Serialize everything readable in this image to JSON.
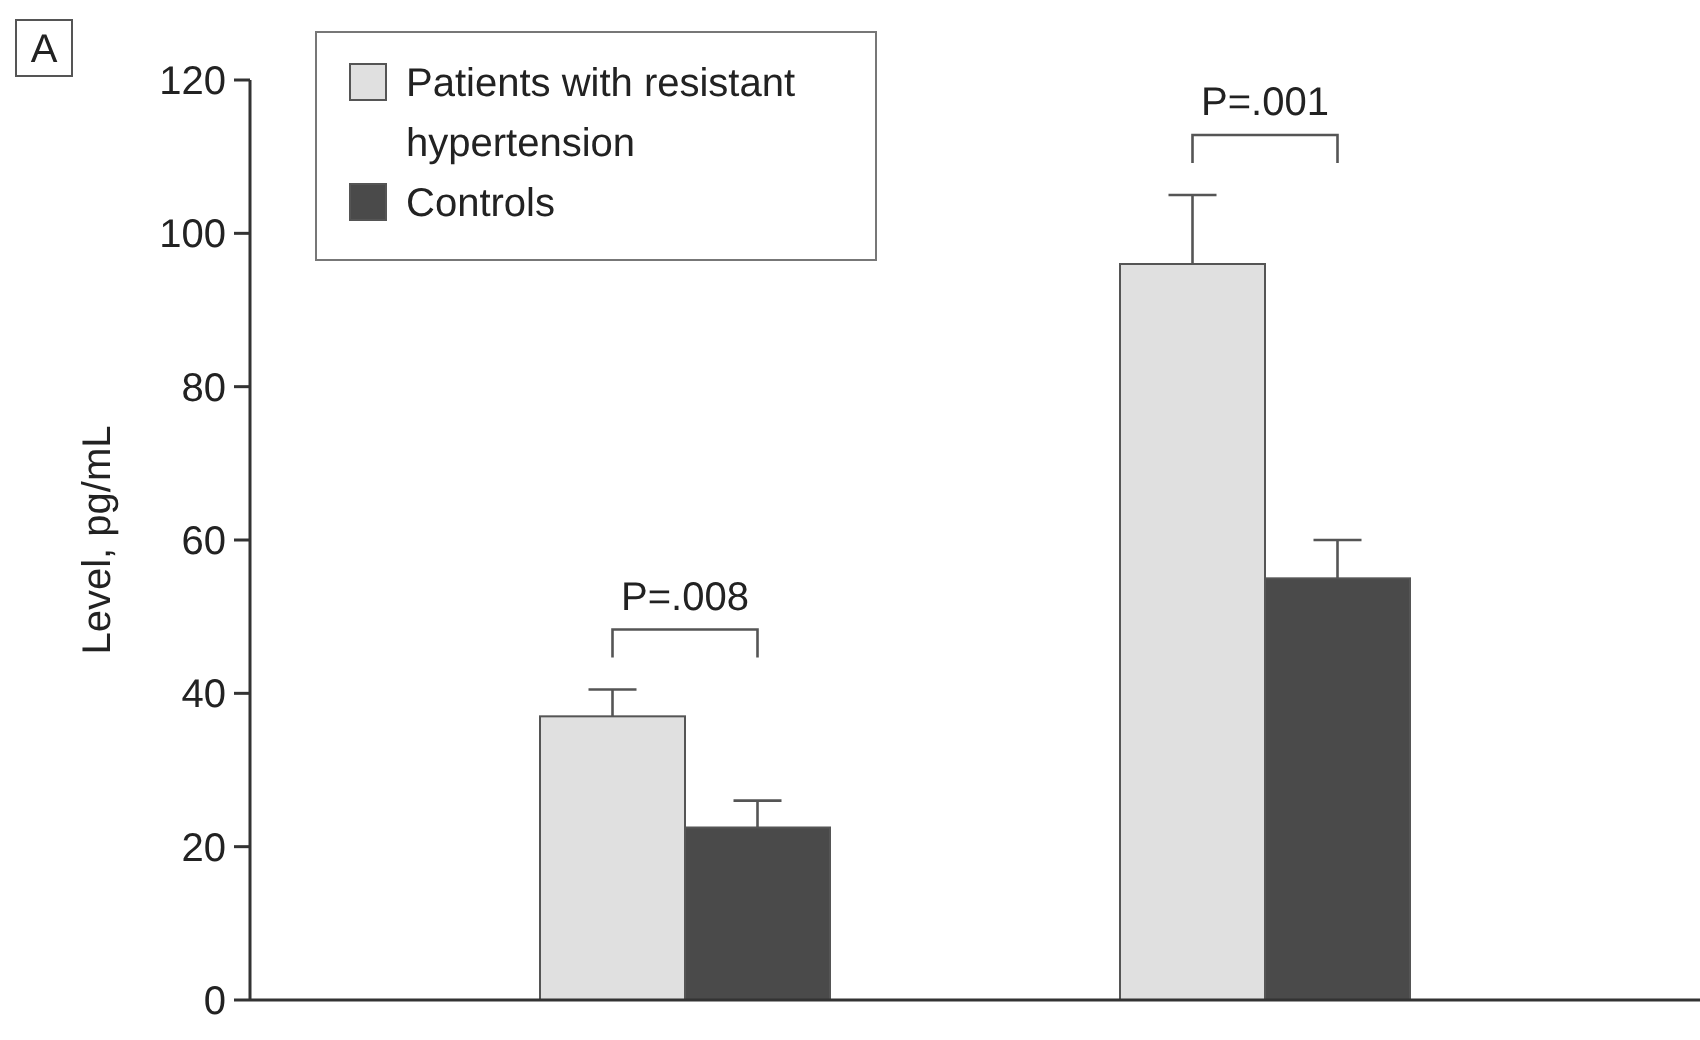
{
  "chart_data": {
    "type": "bar",
    "ylabel": "Level, pg/mL",
    "categories": [
      null,
      null
    ],
    "series": [
      {
        "name": "Patients with resistant hypertension",
        "color": "#e0e0e0",
        "values": [
          37,
          96
        ],
        "errors": [
          [
            37,
            40.5
          ],
          [
            96,
            105
          ]
        ]
      },
      {
        "name": "Controls",
        "color": "#4a4a4a",
        "values": [
          22.5,
          55
        ],
        "errors": [
          [
            22.5,
            26
          ],
          [
            55,
            60
          ]
        ]
      }
    ],
    "ylim": [
      0,
      120
    ],
    "yticks": [
      0,
      20,
      40,
      60,
      80,
      100,
      120
    ],
    "grid": false,
    "legend": "top left",
    "annotations": [
      "A",
      "P=.008",
      "P=.001"
    ]
  }
}
